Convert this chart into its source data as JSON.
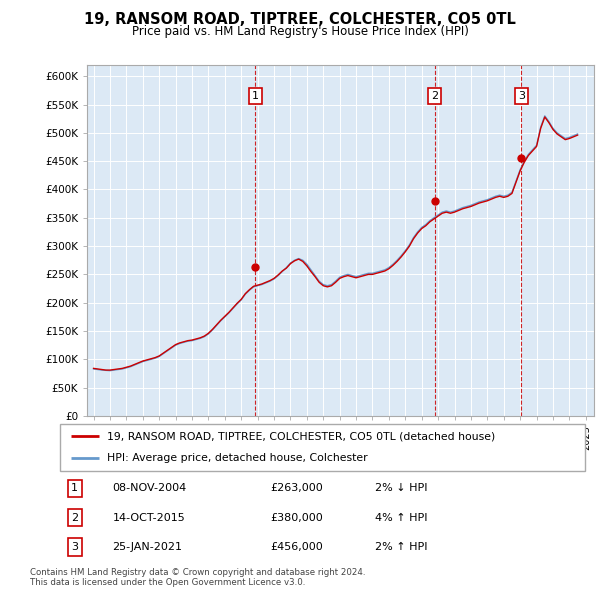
{
  "title": "19, RANSOM ROAD, TIPTREE, COLCHESTER, CO5 0TL",
  "subtitle": "Price paid vs. HM Land Registry's House Price Index (HPI)",
  "ylim": [
    0,
    620000
  ],
  "yticks": [
    0,
    50000,
    100000,
    150000,
    200000,
    250000,
    300000,
    350000,
    400000,
    450000,
    500000,
    550000,
    600000
  ],
  "ytick_labels": [
    "£0",
    "£50K",
    "£100K",
    "£150K",
    "£200K",
    "£250K",
    "£300K",
    "£350K",
    "£400K",
    "£450K",
    "£500K",
    "£550K",
    "£600K"
  ],
  "xlim_start": 1994.6,
  "xlim_end": 2025.5,
  "background_color": "#dce9f5",
  "fig_background": "#ffffff",
  "red_color": "#cc0000",
  "blue_color": "#6699cc",
  "transactions": [
    {
      "label": "1",
      "date": "08-NOV-2004",
      "year": 2004.86,
      "price": 263000,
      "hpi_pct": "2%",
      "hpi_dir": "↓"
    },
    {
      "label": "2",
      "date": "14-OCT-2015",
      "year": 2015.79,
      "price": 380000,
      "hpi_pct": "4%",
      "hpi_dir": "↑"
    },
    {
      "label": "3",
      "date": "25-JAN-2021",
      "year": 2021.07,
      "price": 456000,
      "hpi_pct": "2%",
      "hpi_dir": "↑"
    }
  ],
  "legend_house": "19, RANSOM ROAD, TIPTREE, COLCHESTER, CO5 0TL (detached house)",
  "legend_hpi": "HPI: Average price, detached house, Colchester",
  "footnote": "Contains HM Land Registry data © Crown copyright and database right 2024.\nThis data is licensed under the Open Government Licence v3.0.",
  "hpi_data_x": [
    1995.0,
    1995.25,
    1995.5,
    1995.75,
    1996.0,
    1996.25,
    1996.5,
    1996.75,
    1997.0,
    1997.25,
    1997.5,
    1997.75,
    1998.0,
    1998.25,
    1998.5,
    1998.75,
    1999.0,
    1999.25,
    1999.5,
    1999.75,
    2000.0,
    2000.25,
    2000.5,
    2000.75,
    2001.0,
    2001.25,
    2001.5,
    2001.75,
    2002.0,
    2002.25,
    2002.5,
    2002.75,
    2003.0,
    2003.25,
    2003.5,
    2003.75,
    2004.0,
    2004.25,
    2004.5,
    2004.75,
    2005.0,
    2005.25,
    2005.5,
    2005.75,
    2006.0,
    2006.25,
    2006.5,
    2006.75,
    2007.0,
    2007.25,
    2007.5,
    2007.75,
    2008.0,
    2008.25,
    2008.5,
    2008.75,
    2009.0,
    2009.25,
    2009.5,
    2009.75,
    2010.0,
    2010.25,
    2010.5,
    2010.75,
    2011.0,
    2011.25,
    2011.5,
    2011.75,
    2012.0,
    2012.25,
    2012.5,
    2012.75,
    2013.0,
    2013.25,
    2013.5,
    2013.75,
    2014.0,
    2014.25,
    2014.5,
    2014.75,
    2015.0,
    2015.25,
    2015.5,
    2015.75,
    2016.0,
    2016.25,
    2016.5,
    2016.75,
    2017.0,
    2017.25,
    2017.5,
    2017.75,
    2018.0,
    2018.25,
    2018.5,
    2018.75,
    2019.0,
    2019.25,
    2019.5,
    2019.75,
    2020.0,
    2020.25,
    2020.5,
    2020.75,
    2021.0,
    2021.25,
    2021.5,
    2021.75,
    2022.0,
    2022.25,
    2022.5,
    2022.75,
    2023.0,
    2023.25,
    2023.5,
    2023.75,
    2024.0,
    2024.25,
    2024.5
  ],
  "hpi_data_y": [
    83000,
    82000,
    81000,
    80500,
    80000,
    81000,
    82000,
    83000,
    85000,
    87000,
    90000,
    93000,
    96000,
    98000,
    100000,
    102000,
    105000,
    110000,
    115000,
    120000,
    125000,
    128000,
    130000,
    132000,
    133000,
    135000,
    137000,
    140000,
    145000,
    152000,
    160000,
    168000,
    175000,
    182000,
    190000,
    198000,
    205000,
    215000,
    222000,
    228000,
    230000,
    232000,
    235000,
    238000,
    242000,
    248000,
    255000,
    262000,
    270000,
    275000,
    278000,
    275000,
    268000,
    258000,
    248000,
    238000,
    232000,
    230000,
    232000,
    238000,
    245000,
    248000,
    250000,
    248000,
    246000,
    248000,
    250000,
    252000,
    252000,
    254000,
    256000,
    258000,
    262000,
    268000,
    275000,
    283000,
    292000,
    302000,
    315000,
    325000,
    333000,
    338000,
    345000,
    350000,
    355000,
    360000,
    362000,
    360000,
    362000,
    365000,
    368000,
    370000,
    372000,
    375000,
    378000,
    380000,
    382000,
    385000,
    388000,
    390000,
    388000,
    390000,
    395000,
    415000,
    435000,
    450000,
    462000,
    470000,
    478000,
    510000,
    530000,
    520000,
    508000,
    500000,
    495000,
    490000,
    492000,
    495000,
    498000
  ],
  "house_data_x": [
    1995.0,
    1995.25,
    1995.5,
    1995.75,
    1996.0,
    1996.25,
    1996.5,
    1996.75,
    1997.0,
    1997.25,
    1997.5,
    1997.75,
    1998.0,
    1998.25,
    1998.5,
    1998.75,
    1999.0,
    1999.25,
    1999.5,
    1999.75,
    2000.0,
    2000.25,
    2000.5,
    2000.75,
    2001.0,
    2001.25,
    2001.5,
    2001.75,
    2002.0,
    2002.25,
    2002.5,
    2002.75,
    2003.0,
    2003.25,
    2003.5,
    2003.75,
    2004.0,
    2004.25,
    2004.5,
    2004.75,
    2005.0,
    2005.25,
    2005.5,
    2005.75,
    2006.0,
    2006.25,
    2006.5,
    2006.75,
    2007.0,
    2007.25,
    2007.5,
    2007.75,
    2008.0,
    2008.25,
    2008.5,
    2008.75,
    2009.0,
    2009.25,
    2009.5,
    2009.75,
    2010.0,
    2010.25,
    2010.5,
    2010.75,
    2011.0,
    2011.25,
    2011.5,
    2011.75,
    2012.0,
    2012.25,
    2012.5,
    2012.75,
    2013.0,
    2013.25,
    2013.5,
    2013.75,
    2014.0,
    2014.25,
    2014.5,
    2014.75,
    2015.0,
    2015.25,
    2015.5,
    2015.75,
    2016.0,
    2016.25,
    2016.5,
    2016.75,
    2017.0,
    2017.25,
    2017.5,
    2017.75,
    2018.0,
    2018.25,
    2018.5,
    2018.75,
    2019.0,
    2019.25,
    2019.5,
    2019.75,
    2020.0,
    2020.25,
    2020.5,
    2020.75,
    2021.0,
    2021.25,
    2021.5,
    2021.75,
    2022.0,
    2022.25,
    2022.5,
    2022.75,
    2023.0,
    2023.25,
    2023.5,
    2023.75,
    2024.0,
    2024.25,
    2024.5
  ],
  "house_data_y": [
    84000,
    83000,
    82000,
    81000,
    81000,
    82000,
    83000,
    84000,
    86000,
    88000,
    91000,
    94000,
    97000,
    99000,
    101000,
    103000,
    106000,
    111000,
    116000,
    121000,
    126000,
    129000,
    131000,
    133000,
    134000,
    136000,
    138000,
    141000,
    146000,
    153000,
    161000,
    169000,
    176000,
    183000,
    191000,
    199000,
    206000,
    216000,
    223000,
    229000,
    231000,
    233000,
    236000,
    239000,
    243000,
    249000,
    256000,
    261000,
    269000,
    274000,
    277000,
    273000,
    265000,
    255000,
    246000,
    236000,
    230000,
    228000,
    230000,
    236000,
    243000,
    246000,
    248000,
    246000,
    244000,
    246000,
    248000,
    250000,
    250000,
    252000,
    254000,
    256000,
    260000,
    266000,
    273000,
    281000,
    290000,
    300000,
    313000,
    323000,
    331000,
    336000,
    343000,
    348000,
    353000,
    358000,
    360000,
    358000,
    360000,
    363000,
    366000,
    368000,
    370000,
    373000,
    376000,
    378000,
    380000,
    383000,
    386000,
    388000,
    386000,
    388000,
    393000,
    413000,
    433000,
    448000,
    460000,
    468000,
    476000,
    508000,
    528000,
    518000,
    506000,
    498000,
    493000,
    488000,
    490000,
    493000,
    496000
  ]
}
